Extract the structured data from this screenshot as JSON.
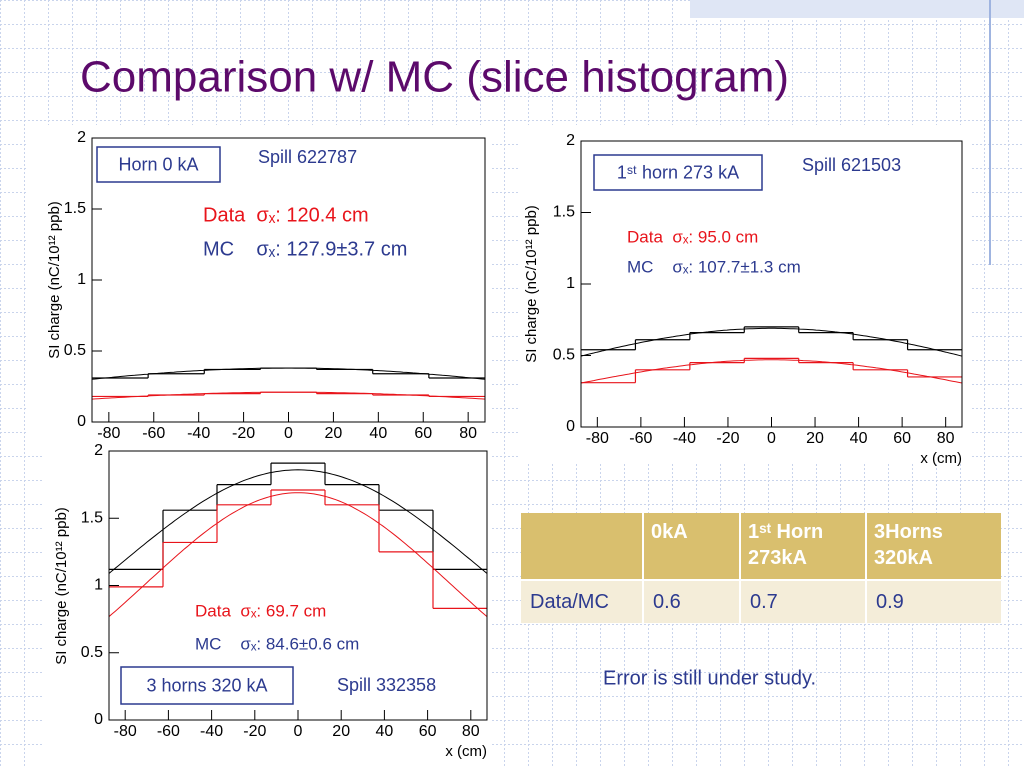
{
  "title": "Comparison w/ MC (slice histogram)",
  "chart_data": [
    {
      "type": "histogram",
      "ylabel": "SI charge (nC/10¹² ppb)",
      "bins": [
        -87.5,
        -62.5,
        -37.5,
        -12.5,
        12.5,
        37.5,
        62.5,
        87.5
      ],
      "xlim": [
        -87.5,
        87.5
      ],
      "xticks": [
        -80,
        -60,
        -40,
        -20,
        0,
        20,
        40,
        60,
        80
      ],
      "ylim": [
        0,
        2
      ],
      "yticks": [
        0,
        0.5,
        1,
        1.5,
        2
      ],
      "series": [
        {
          "color": "#000000",
          "values": [
            0.31,
            0.34,
            0.37,
            0.38,
            0.37,
            0.34,
            0.31
          ],
          "fit": {
            "amplitude": 0.38,
            "mean": 0,
            "sigma": 127.9
          }
        },
        {
          "color": "#e8141b",
          "values": [
            0.18,
            0.19,
            0.2,
            0.21,
            0.2,
            0.19,
            0.18
          ],
          "fit": {
            "amplitude": 0.21,
            "mean": 0,
            "sigma": 120.4
          }
        }
      ],
      "annotations": {
        "setting": "Horn 0 kA",
        "spill": "Spill 622787",
        "data": "Data  σₓ: 120.4 cm",
        "mc": "MC    σₓ: 127.9±3.7 cm"
      }
    },
    {
      "type": "histogram",
      "ylabel": "SI charge (nC/10¹² ppb)",
      "xlabel": "x (cm)",
      "bins": [
        -87.5,
        -62.5,
        -37.5,
        -12.5,
        12.5,
        37.5,
        62.5,
        87.5
      ],
      "xlim": [
        -87.5,
        87.5
      ],
      "xticks": [
        -80,
        -60,
        -40,
        -20,
        0,
        20,
        40,
        60,
        80
      ],
      "ylim": [
        0,
        2
      ],
      "yticks": [
        0,
        0.5,
        1,
        1.5,
        2
      ],
      "series": [
        {
          "color": "#000000",
          "values": [
            0.54,
            0.61,
            0.66,
            0.7,
            0.66,
            0.61,
            0.54
          ],
          "fit": {
            "amplitude": 0.69,
            "mean": 0,
            "sigma": 107.7
          }
        },
        {
          "color": "#e8141b",
          "values": [
            0.31,
            0.4,
            0.45,
            0.48,
            0.45,
            0.4,
            0.35
          ],
          "fit": {
            "amplitude": 0.47,
            "mean": 0,
            "sigma": 95.0
          }
        }
      ],
      "annotations": {
        "setting": "1ˢᵗ horn 273 kA",
        "spill": "Spill 621503",
        "data": "Data  σₓ: 95.0 cm",
        "mc": "MC    σₓ: 107.7±1.3 cm"
      }
    },
    {
      "type": "histogram",
      "ylabel": "SI charge (nC/10¹² ppb)",
      "xlabel": "x (cm)",
      "bins": [
        -87.5,
        -62.5,
        -37.5,
        -12.5,
        12.5,
        37.5,
        62.5,
        87.5
      ],
      "xlim": [
        -87.5,
        87.5
      ],
      "xticks": [
        -80,
        -60,
        -40,
        -20,
        0,
        20,
        40,
        60,
        80
      ],
      "ylim": [
        0,
        2
      ],
      "yticks": [
        0,
        0.5,
        1,
        1.5,
        2
      ],
      "series": [
        {
          "color": "#000000",
          "values": [
            1.12,
            1.56,
            1.75,
            1.91,
            1.75,
            1.56,
            1.12
          ],
          "fit": {
            "amplitude": 1.86,
            "mean": 0,
            "sigma": 84.6
          }
        },
        {
          "color": "#e8141b",
          "values": [
            0.99,
            1.32,
            1.6,
            1.71,
            1.6,
            1.25,
            0.83
          ],
          "fit": {
            "amplitude": 1.69,
            "mean": 0,
            "sigma": 69.7
          }
        }
      ],
      "annotations": {
        "setting": "3 horns 320 kA",
        "spill": "Spill 332358",
        "data": "Data  σₓ: 69.7 cm",
        "mc": "MC    σₓ: 84.6±0.6 cm"
      }
    }
  ],
  "table": {
    "columns": [
      "0kA",
      "1ˢᵗ Horn 273kA",
      "3Horns 320kA"
    ],
    "rows": [
      {
        "label": "Data/MC",
        "values": [
          0.6,
          0.7,
          0.9
        ]
      }
    ]
  },
  "note": "Error is still under study."
}
